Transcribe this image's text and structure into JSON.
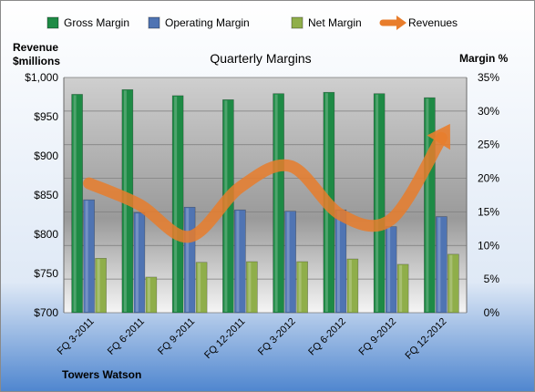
{
  "chart_data": {
    "type": "bar",
    "title": "Quarterly Margins",
    "categories": [
      "FQ 3-2011",
      "FQ 6-2011",
      "FQ 9-2011",
      "FQ 12-2011",
      "FQ 3-2012",
      "FQ 6-2012",
      "FQ 9-2012",
      "FQ 12-2012"
    ],
    "series": [
      {
        "name": "Gross Margin",
        "axis": "right",
        "color": "#1e8a45",
        "values": [
          32.5,
          33.2,
          32.3,
          31.7,
          32.6,
          32.8,
          32.6,
          32.0
        ]
      },
      {
        "name": "Operating Margin",
        "axis": "right",
        "color": "#4f74b3",
        "values": [
          16.8,
          14.9,
          15.7,
          15.3,
          15.1,
          15.3,
          12.8,
          14.3
        ]
      },
      {
        "name": "Net Margin",
        "axis": "right",
        "color": "#8fae4a",
        "values": [
          8.1,
          5.3,
          7.5,
          7.6,
          7.6,
          8.0,
          7.2,
          8.7
        ]
      },
      {
        "name": "Revenues",
        "axis": "left",
        "type": "line",
        "color": "#e87d2c",
        "values": [
          865,
          838,
          797,
          860,
          887,
          825,
          819,
          923
        ]
      }
    ],
    "left_axis": {
      "label_line1": "Revenue",
      "label_line2": "$millions",
      "min": 700,
      "max": 1000,
      "step": 50,
      "ticks": [
        "$700",
        "$750",
        "$800",
        "$850",
        "$900",
        "$950",
        "$1,000"
      ]
    },
    "right_axis": {
      "label": "Margin %",
      "min": 0,
      "max": 35,
      "step": 5,
      "ticks": [
        "0%",
        "5%",
        "10%",
        "15%",
        "20%",
        "25%",
        "30%",
        "35%"
      ]
    },
    "legend": {
      "position": "top"
    },
    "grid": true,
    "source": "Towers Watson"
  }
}
